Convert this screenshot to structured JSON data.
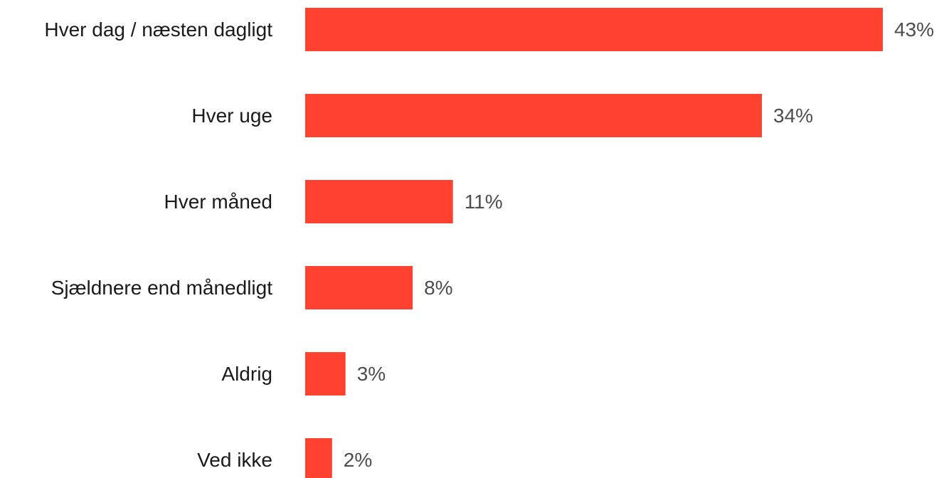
{
  "chart_data": {
    "type": "bar",
    "orientation": "horizontal",
    "categories": [
      "Hver dag / næsten dagligt",
      "Hver uge",
      "Hver måned",
      "Sjældnere end månedligt",
      "Aldrig",
      "Ved ikke"
    ],
    "values": [
      43,
      34,
      11,
      8,
      3,
      2
    ],
    "value_labels": [
      "43%",
      "34%",
      "11%",
      "8%",
      "3%",
      "2%"
    ],
    "unit": "%",
    "bar_color": "#ff4130",
    "title": "",
    "xlabel": "",
    "ylabel": "",
    "xlim": [
      0,
      43
    ],
    "grid": false,
    "legend": "none"
  }
}
